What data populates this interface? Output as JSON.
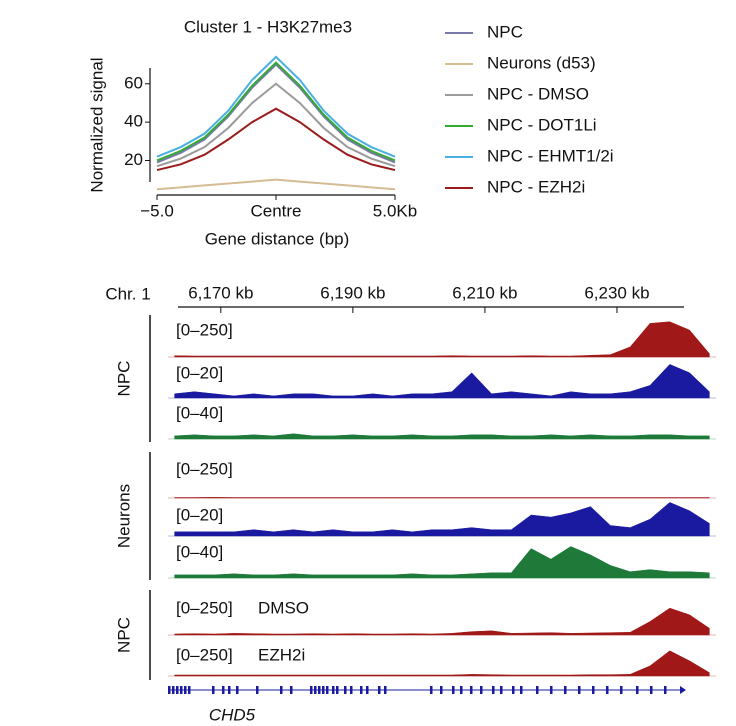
{
  "chart_data": [
    {
      "type": "line",
      "title": "Cluster 1 - H3K27me3",
      "ylabel": "Normalized signal",
      "xlabel": "Gene distance (bp)",
      "x": [
        -5,
        -4,
        -3,
        -2,
        -1,
        0,
        1,
        2,
        3,
        4,
        5
      ],
      "xlim": [
        -5,
        5
      ],
      "xticks": [
        {
          "value": -5,
          "label": "−5.0"
        },
        {
          "value": 0,
          "label": "Centre"
        },
        {
          "value": 5,
          "label": "5.0Kb"
        }
      ],
      "ylim": [
        2,
        75
      ],
      "yticks": [
        20,
        40,
        60
      ],
      "series": [
        {
          "name": "NPC",
          "color": "#7a7aaa",
          "values": [
            19,
            24,
            31,
            43,
            58,
            70,
            58,
            43,
            31,
            24,
            19
          ]
        },
        {
          "name": "Neurons (d53)",
          "color": "#d6bc92",
          "values": [
            5,
            6,
            7,
            8,
            9,
            10,
            9,
            8,
            7,
            6,
            5
          ]
        },
        {
          "name": "NPC - DMSO",
          "color": "#9a9a9a",
          "values": [
            17,
            21,
            27,
            37,
            50,
            60,
            50,
            37,
            27,
            21,
            17
          ]
        },
        {
          "name": "NPC - DOT1Li",
          "color": "#33aa33",
          "values": [
            20,
            25,
            32,
            44,
            59,
            71,
            59,
            44,
            32,
            25,
            20
          ]
        },
        {
          "name": "NPC - EHMT1/2i",
          "color": "#4ab0e0",
          "values": [
            22,
            27,
            34,
            46,
            62,
            74,
            62,
            46,
            34,
            27,
            22
          ]
        },
        {
          "name": "NPC - EZH2i",
          "color": "#9b1c1c",
          "values": [
            15,
            18,
            23,
            31,
            40,
            47,
            40,
            31,
            23,
            18,
            15
          ]
        }
      ]
    },
    {
      "type": "area",
      "axis_label": "Chr. 1",
      "gene": "CHD5",
      "groups": [
        "NPC",
        "Neurons",
        "NPC"
      ],
      "xlim": [
        6162,
        6245
      ],
      "xticks": [
        {
          "value": 6170,
          "label": "6,170 kb"
        },
        {
          "value": 6190,
          "label": "6,190 kb"
        },
        {
          "value": 6210,
          "label": "6,210 kb"
        },
        {
          "value": 6230,
          "label": "6,230 kb"
        }
      ],
      "x": [
        6163,
        6166,
        6169,
        6172,
        6175,
        6178,
        6181,
        6184,
        6187,
        6190,
        6193,
        6196,
        6199,
        6202,
        6205,
        6208,
        6211,
        6214,
        6217,
        6220,
        6223,
        6226,
        6229,
        6232,
        6235,
        6238,
        6241,
        6244
      ],
      "series": [
        {
          "name": "[0–250]",
          "color": "#a01818",
          "ylim": [
            0,
            250
          ],
          "values": [
            8,
            6,
            6,
            6,
            6,
            6,
            6,
            6,
            6,
            6,
            6,
            6,
            6,
            6,
            8,
            6,
            6,
            6,
            8,
            6,
            6,
            10,
            14,
            60,
            200,
            210,
            160,
            20
          ]
        },
        {
          "name": "[0–20]",
          "color": "#1a1aa0",
          "ylim": [
            0,
            20
          ],
          "values": [
            2,
            3,
            2,
            1,
            2,
            1,
            2,
            2,
            1,
            1,
            2,
            1,
            2,
            2,
            3,
            12,
            2,
            3,
            2,
            1,
            3,
            2,
            2,
            3,
            6,
            16,
            12,
            3
          ]
        },
        {
          "name": "[0–40]",
          "color": "#1f7a3a",
          "ylim": [
            0,
            40
          ],
          "values": [
            3,
            4,
            3,
            3,
            4,
            3,
            5,
            3,
            3,
            4,
            3,
            3,
            4,
            3,
            3,
            4,
            4,
            3,
            3,
            4,
            3,
            4,
            3,
            3,
            4,
            4,
            3,
            3
          ]
        },
        {
          "name": "[0–250]",
          "color": "#a01818",
          "ylim": [
            0,
            250
          ],
          "values": [
            3,
            3,
            4,
            3,
            3,
            3,
            3,
            3,
            3,
            3,
            3,
            3,
            3,
            3,
            3,
            3,
            3,
            3,
            3,
            3,
            3,
            3,
            3,
            3,
            3,
            3,
            3,
            3
          ]
        },
        {
          "name": "[0–20]",
          "color": "#1a1aa0",
          "ylim": [
            0,
            20
          ],
          "values": [
            2,
            2,
            2,
            2,
            3,
            2,
            3,
            2,
            3,
            2,
            2,
            3,
            2,
            3,
            3,
            4,
            3,
            3,
            10,
            9,
            11,
            14,
            5,
            4,
            8,
            16,
            12,
            6
          ]
        },
        {
          "name": "[0–40]",
          "color": "#1f7a3a",
          "ylim": [
            0,
            40
          ],
          "values": [
            3,
            3,
            3,
            4,
            3,
            3,
            4,
            3,
            3,
            3,
            3,
            3,
            4,
            3,
            3,
            4,
            5,
            5,
            28,
            18,
            30,
            22,
            12,
            6,
            8,
            6,
            6,
            5
          ]
        },
        {
          "name": "[0–250]",
          "condition": "DMSO",
          "color": "#a01818",
          "ylim": [
            0,
            250
          ],
          "values": [
            6,
            8,
            6,
            10,
            8,
            6,
            6,
            8,
            6,
            8,
            6,
            6,
            8,
            6,
            10,
            20,
            25,
            10,
            12,
            14,
            10,
            12,
            14,
            16,
            80,
            160,
            120,
            40
          ]
        },
        {
          "name": "[0–250]",
          "condition": "EZH2i",
          "color": "#a01818",
          "ylim": [
            0,
            250
          ],
          "values": [
            6,
            6,
            6,
            6,
            6,
            6,
            6,
            6,
            6,
            6,
            6,
            6,
            6,
            6,
            6,
            10,
            8,
            6,
            6,
            6,
            6,
            8,
            8,
            10,
            60,
            150,
            90,
            20
          ]
        }
      ]
    }
  ]
}
